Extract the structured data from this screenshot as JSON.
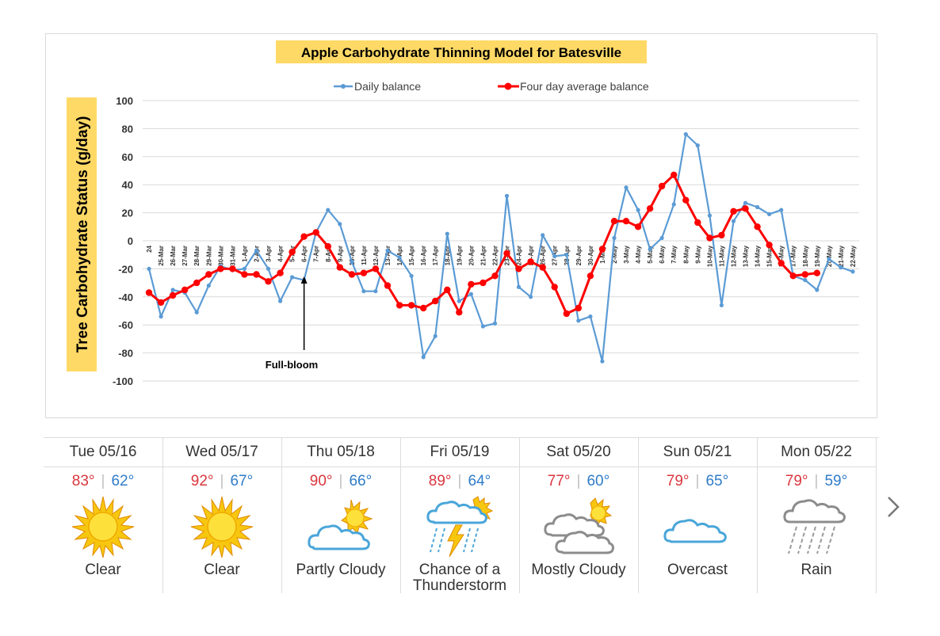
{
  "chart_data": {
    "type": "line",
    "title": "Apple Carbohydrate Thinning Model for Batesville",
    "ylabel": "Tree Carbohydrate Status (g/day)",
    "xlabel": "",
    "ylim": [
      -100,
      100
    ],
    "yticks": [
      "100",
      "80",
      "60",
      "40",
      "20",
      "0",
      "-20",
      "-40",
      "-60",
      "-80",
      "-100"
    ],
    "categories": [
      "24",
      "25-Mar",
      "26-Mar",
      "27-Mar",
      "28-Mar",
      "29-Mar",
      "30-Mar",
      "31-Mar",
      "1-Apr",
      "2-Apr",
      "3-Apr",
      "4-Apr",
      "5-Apr",
      "6-Apr",
      "7-Apr",
      "8-Apr",
      "9-Apr",
      "10-Apr",
      "11-Apr",
      "12-Apr",
      "13-Apr",
      "14-Apr",
      "15-Apr",
      "16-Apr",
      "17-Apr",
      "18-Apr",
      "19-Apr",
      "20-Apr",
      "21-Apr",
      "22-Apr",
      "23-Apr",
      "24-Apr",
      "25-Apr",
      "26-Apr",
      "27-Apr",
      "28-Apr",
      "29-Apr",
      "30-Apr",
      "1-May",
      "2-May",
      "3-May",
      "4-May",
      "5-May",
      "6-May",
      "7-May",
      "8-May",
      "9-May",
      "10-May",
      "11-May",
      "12-May",
      "13-May",
      "14-May",
      "15-May",
      "16-May",
      "17-May",
      "18-May",
      "19-May",
      "20-May",
      "21-May",
      "22-May"
    ],
    "series": [
      {
        "name": "Daily balance",
        "color": "#5b9bd5",
        "values": [
          -20,
          -54,
          -35,
          -37,
          -51,
          -32,
          -18,
          -21,
          -20,
          -7,
          -20,
          -43,
          -26,
          -28,
          6,
          22,
          12,
          -15,
          -36,
          -36,
          -7,
          -12,
          -25,
          -83,
          -68,
          5,
          -43,
          -38,
          -61,
          -59,
          32,
          -33,
          -40,
          4,
          -11,
          -10,
          -57,
          -54,
          -86,
          2,
          38,
          22,
          -6,
          2,
          26,
          76,
          68,
          18,
          -46,
          14,
          27,
          24,
          19,
          22,
          -25,
          -28,
          -35,
          -13,
          -19,
          -22
        ]
      },
      {
        "name": "Four day average balance",
        "color": "#ff0000",
        "values": [
          -37,
          -44,
          -39,
          -35,
          -30,
          -24,
          -20,
          -20,
          -24,
          -24,
          -29,
          -23,
          -8,
          3,
          6,
          -4,
          -19,
          -24,
          -23,
          -20,
          -32,
          -46,
          -46,
          -48,
          -43,
          -35,
          -51,
          -31,
          -30,
          -25,
          -9,
          -20,
          -15,
          -19,
          -33,
          -52,
          -48,
          -25,
          -6,
          14,
          14,
          10,
          23,
          39,
          47,
          29,
          13,
          2,
          4,
          21,
          23,
          10,
          -3,
          -16,
          -25,
          -24,
          -23,
          null,
          null,
          null
        ]
      }
    ],
    "legend_position": "top",
    "grid": true,
    "annotations": [
      {
        "text": "Full-bloom",
        "x": "6-Apr"
      }
    ]
  },
  "forecast": {
    "days": [
      {
        "date": "Tue 05/16",
        "high": "83°",
        "low": "62°",
        "condition": "Clear",
        "icon": "sun-icon"
      },
      {
        "date": "Wed 05/17",
        "high": "92°",
        "low": "67°",
        "condition": "Clear",
        "icon": "sun-icon"
      },
      {
        "date": "Thu 05/18",
        "high": "90°",
        "low": "66°",
        "condition": "Partly Cloudy",
        "icon": "partly-cloudy-icon"
      },
      {
        "date": "Fri 05/19",
        "high": "89°",
        "low": "64°",
        "condition": "Chance of a Thunderstorm",
        "icon": "thunderstorm-icon"
      },
      {
        "date": "Sat 05/20",
        "high": "77°",
        "low": "60°",
        "condition": "Mostly Cloudy",
        "icon": "mostly-cloudy-icon"
      },
      {
        "date": "Sun 05/21",
        "high": "79°",
        "low": "65°",
        "condition": "Overcast",
        "icon": "overcast-icon"
      },
      {
        "date": "Mon 05/22",
        "high": "79°",
        "low": "59°",
        "condition": "Rain",
        "icon": "rain-icon"
      }
    ],
    "separator": "|",
    "next_icon": "chevron-right-icon"
  }
}
